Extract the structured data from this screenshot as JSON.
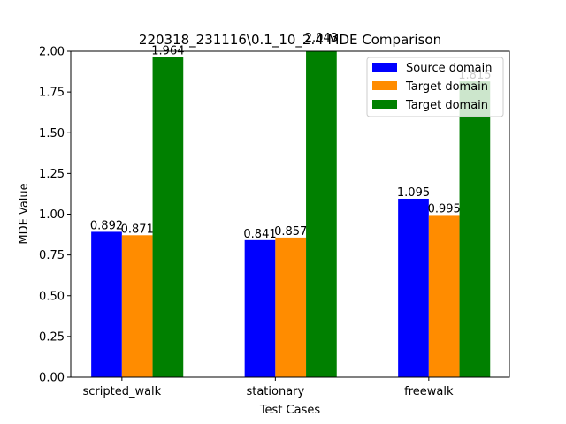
{
  "chart_data": {
    "type": "bar",
    "title": "220318_231116\\0.1_10_2.4 MDE Comparison",
    "x_label": "Test Cases",
    "y_label": "MDE Value",
    "categories": [
      "scripted_walk",
      "stationary",
      "freewalk"
    ],
    "series": [
      {
        "name": "Source domain",
        "color": "#0000ff",
        "values": [
          0.892,
          0.841,
          1.095
        ]
      },
      {
        "name": "Target domain",
        "color": "#ff8c00",
        "values": [
          0.871,
          0.857,
          0.995
        ]
      },
      {
        "name": "Target domain",
        "color": "#008000",
        "values": [
          1.964,
          2.043,
          1.815
        ]
      }
    ],
    "ylim": [
      0,
      2
    ],
    "yticks": [
      {
        "value": 0,
        "label": "0.00"
      },
      {
        "value": 0.25,
        "label": "0.25"
      },
      {
        "value": 0.5,
        "label": "0.50"
      },
      {
        "value": 0.75,
        "label": "0.75"
      },
      {
        "value": 1,
        "label": "1.00"
      },
      {
        "value": 1.25,
        "label": "1.25"
      },
      {
        "value": 1.5,
        "label": "1.50"
      },
      {
        "value": 1.75,
        "label": "1.75"
      },
      {
        "value": 2,
        "label": "2.00"
      }
    ],
    "legend": "upper right"
  }
}
